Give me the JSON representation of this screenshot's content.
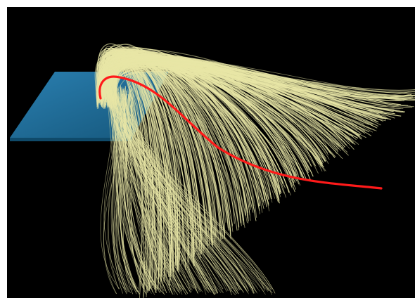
{
  "scene": {
    "background_color": "#000000",
    "frame_color": "#ffffff",
    "plane_color": "#1f6f9a",
    "fiber_color": "#e8e6a6",
    "highlight_fiber_color": "#ff1a1a"
  }
}
